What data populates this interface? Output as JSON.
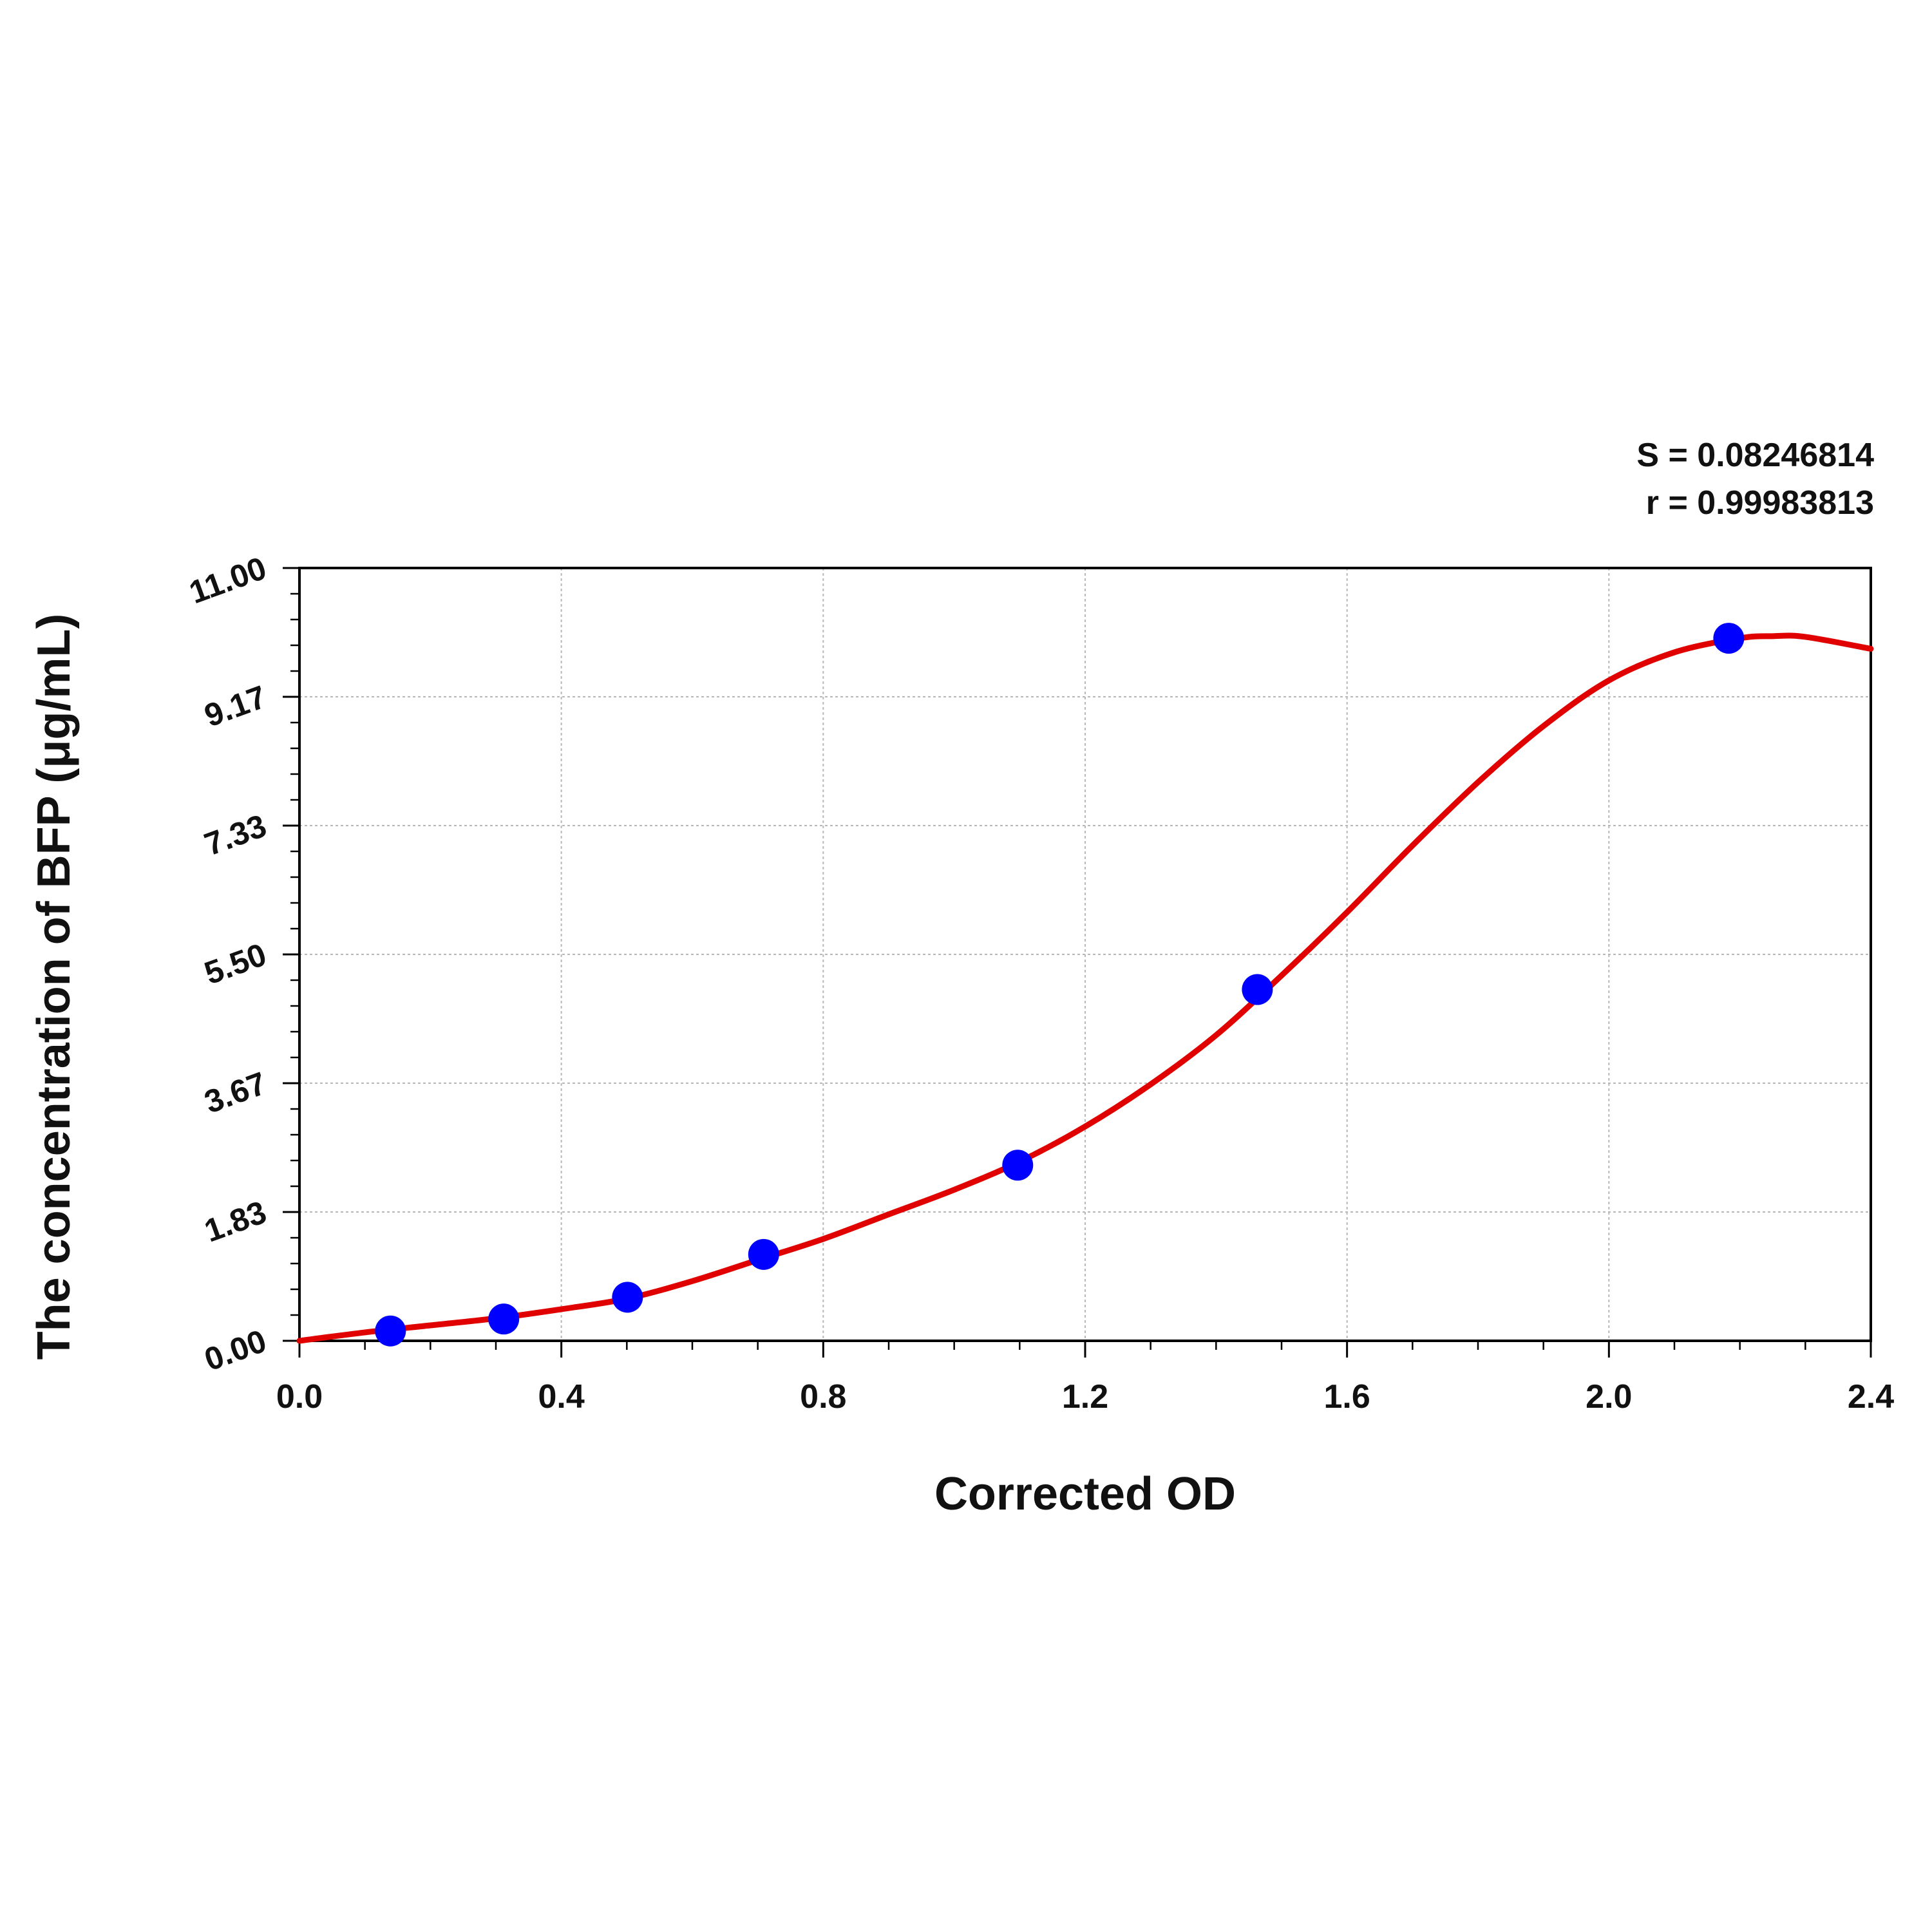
{
  "chart_data": {
    "type": "scatter",
    "title": "",
    "xlabel": "Corrected OD",
    "ylabel": "The concentration of BFP (μg/mL)",
    "xlim": [
      0,
      2.4
    ],
    "ylim": [
      0,
      11
    ],
    "x_ticks": [
      "0.0",
      "0.4",
      "0.8",
      "1.2",
      "1.6",
      "2.0",
      "2.4"
    ],
    "y_ticks": [
      "0.00",
      "1.83",
      "3.67",
      "5.50",
      "7.33",
      "9.17",
      "11.00"
    ],
    "grid": true,
    "stats": {
      "s_text": "S = 0.08246814",
      "r_text": "r = 0.99983813"
    },
    "series": [
      {
        "type": "scatter",
        "color": "#0000ff",
        "x": [
          0.139,
          0.312,
          0.501,
          0.709,
          1.097,
          1.463,
          2.183
        ],
        "y": [
          0.14,
          0.31,
          0.62,
          1.23,
          2.5,
          5.0,
          10.0
        ]
      },
      {
        "type": "line",
        "color": "#e00000",
        "x": [
          0.0,
          0.1,
          0.2,
          0.3,
          0.4,
          0.5,
          0.6,
          0.7,
          0.8,
          0.9,
          1.0,
          1.1,
          1.2,
          1.3,
          1.4,
          1.5,
          1.6,
          1.7,
          1.8,
          1.9,
          2.0,
          2.1,
          2.2,
          2.25,
          2.3,
          2.4
        ],
        "y": [
          0.0,
          0.12,
          0.22,
          0.32,
          0.45,
          0.6,
          0.85,
          1.15,
          1.45,
          1.8,
          2.15,
          2.55,
          3.05,
          3.65,
          4.35,
          5.2,
          6.1,
          7.05,
          7.95,
          8.75,
          9.4,
          9.8,
          10.0,
          10.03,
          10.02,
          9.85
        ]
      }
    ]
  }
}
